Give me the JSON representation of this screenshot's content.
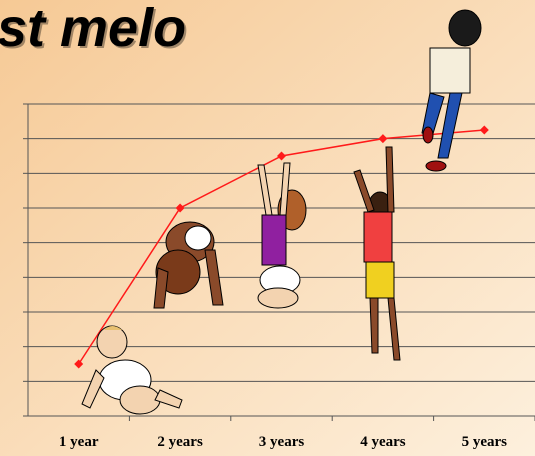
{
  "chart_data": {
    "type": "line",
    "title": "st melo",
    "categories": [
      "1 year",
      "2 years",
      "3 years",
      "4 years",
      "5 years"
    ],
    "series": [
      {
        "name": null,
        "color": "#ff1a1a",
        "values": [
          1.5,
          6.0,
          7.5,
          8.0,
          8.25
        ]
      }
    ],
    "ylim": [
      0,
      9
    ],
    "yticks": [
      0,
      1,
      2,
      3,
      4,
      5,
      6,
      7,
      8,
      9
    ],
    "grid": true
  }
}
